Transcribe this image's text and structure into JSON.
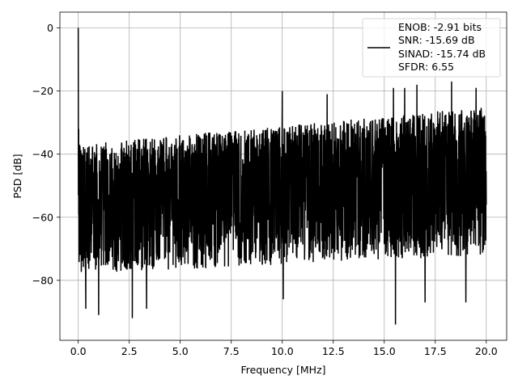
{
  "chart_data": {
    "type": "line",
    "title": "",
    "xlabel": "Frequency [MHz]",
    "ylabel": "PSD [dB]",
    "xlim": [
      -0.9,
      21.0
    ],
    "ylim": [
      -99,
      5
    ],
    "xticks": [
      0.0,
      2.5,
      5.0,
      7.5,
      10.0,
      12.5,
      15.0,
      17.5,
      20.0
    ],
    "xtick_labels": [
      "0.0",
      "2.5",
      "5.0",
      "7.5",
      "10.0",
      "12.5",
      "15.0",
      "17.5",
      "20.0"
    ],
    "yticks": [
      0,
      -20,
      -40,
      -60,
      -80
    ],
    "ytick_labels": [
      "0",
      "−20",
      "−40",
      "−60",
      "−80"
    ],
    "grid": true,
    "legend_position": "top-right",
    "series": [
      {
        "name": "ENOB: -2.91 bits\nSNR: -15.69 dB\nSINAD: -15.74 dB\nSFDR: 6.55",
        "color": "#000000",
        "x_range": [
          0,
          20
        ],
        "peak": {
          "x": 0.0,
          "y": 0
        },
        "noise_mean_start": -54,
        "noise_mean_end": -44,
        "upper_envelope_start": -37,
        "upper_envelope_end": -25,
        "lower_envelope_start": -78,
        "lower_envelope_end": -72,
        "min_spikes": [
          {
            "x": 0.37,
            "y": -89
          },
          {
            "x": 1.0,
            "y": -91
          },
          {
            "x": 2.65,
            "y": -92
          },
          {
            "x": 3.35,
            "y": -89
          },
          {
            "x": 10.05,
            "y": -86
          },
          {
            "x": 15.55,
            "y": -94
          },
          {
            "x": 17.0,
            "y": -87
          },
          {
            "x": 19.0,
            "y": -87
          }
        ],
        "max_spikes": [
          {
            "x": 0.02,
            "y": -32
          },
          {
            "x": 10.0,
            "y": -20
          },
          {
            "x": 12.2,
            "y": -21
          },
          {
            "x": 15.45,
            "y": -19
          },
          {
            "x": 16.0,
            "y": -19
          },
          {
            "x": 16.6,
            "y": -18
          },
          {
            "x": 18.3,
            "y": -17
          },
          {
            "x": 19.5,
            "y": -19
          }
        ]
      }
    ]
  },
  "legend": {
    "line1": "ENOB: -2.91 bits",
    "line2": "SNR: -15.69 dB",
    "line3": "SINAD: -15.74 dB",
    "line4": "SFDR: 6.55"
  }
}
